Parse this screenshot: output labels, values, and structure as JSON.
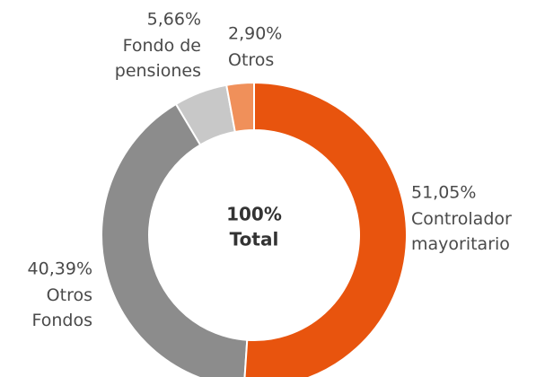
{
  "chart_data": {
    "type": "donut",
    "center_value": "100%",
    "center_label": "Total",
    "categories": [
      "Controlador mayoritario",
      "Otros Fondos",
      "Fondo de pensiones",
      "Otros"
    ],
    "values": [
      51.05,
      40.39,
      5.66,
      2.9
    ],
    "value_labels": [
      "51,05%",
      "40,39%",
      "5,66%",
      "2,90%"
    ],
    "colors": [
      "#e8540e",
      "#8c8c8c",
      "#c8c8c8",
      "#f0905a"
    ]
  }
}
